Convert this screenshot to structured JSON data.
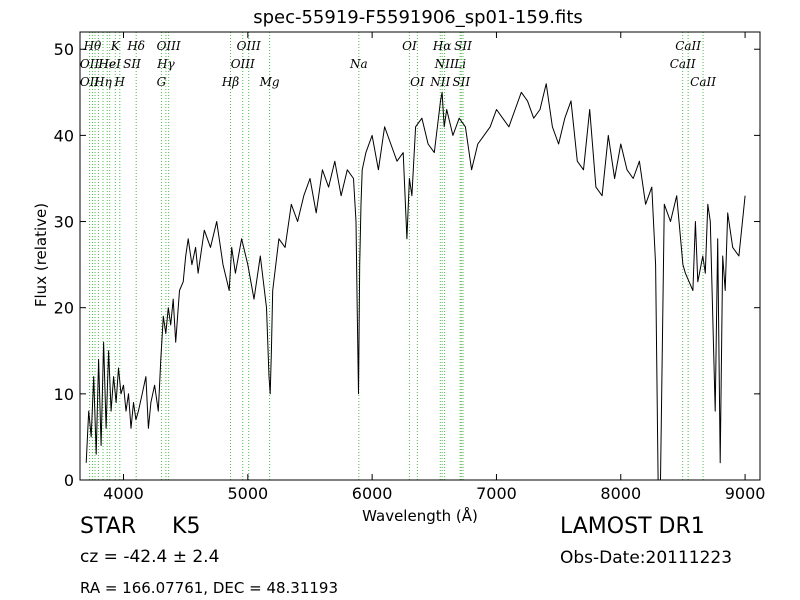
{
  "chart_data": {
    "type": "line",
    "title": "spec-55919-F5591906_sp01-159.fits",
    "xlabel": "Wavelength (Å)",
    "ylabel": "Flux (relative)",
    "xlim": [
      3650,
      9120
    ],
    "ylim": [
      0,
      52
    ],
    "xticks": [
      4000,
      5000,
      6000,
      7000,
      8000,
      9000
    ],
    "yticks": [
      0,
      10,
      20,
      30,
      40,
      50
    ],
    "grid": false,
    "series": [
      {
        "color": "#000000",
        "x": [
          3700,
          3720,
          3740,
          3760,
          3780,
          3800,
          3820,
          3840,
          3860,
          3880,
          3900,
          3920,
          3940,
          3960,
          3980,
          4000,
          4020,
          4040,
          4060,
          4080,
          4100,
          4120,
          4150,
          4180,
          4200,
          4220,
          4250,
          4280,
          4300,
          4320,
          4340,
          4360,
          4380,
          4400,
          4420,
          4450,
          4480,
          4500,
          4520,
          4550,
          4580,
          4600,
          4650,
          4700,
          4750,
          4800,
          4850,
          4870,
          4900,
          4950,
          5000,
          5050,
          5100,
          5150,
          5170,
          5180,
          5190,
          5200,
          5250,
          5300,
          5350,
          5400,
          5450,
          5500,
          5550,
          5600,
          5650,
          5700,
          5750,
          5800,
          5850,
          5870,
          5880,
          5890,
          5900,
          5910,
          5920,
          5950,
          6000,
          6050,
          6100,
          6150,
          6200,
          6250,
          6280,
          6300,
          6320,
          6350,
          6400,
          6450,
          6500,
          6550,
          6563,
          6580,
          6600,
          6650,
          6700,
          6750,
          6800,
          6850,
          6900,
          6950,
          7000,
          7050,
          7100,
          7150,
          7200,
          7250,
          7300,
          7350,
          7400,
          7450,
          7500,
          7550,
          7600,
          7650,
          7700,
          7750,
          7800,
          7850,
          7900,
          7950,
          8000,
          8050,
          8100,
          8150,
          8200,
          8250,
          8280,
          8300,
          8320,
          8350,
          8400,
          8450,
          8500,
          8520,
          8550,
          8580,
          8600,
          8620,
          8660,
          8680,
          8700,
          8720,
          8760,
          8780,
          8800,
          8820,
          8840,
          8860,
          8900,
          8950,
          9000
        ],
        "y": [
          2,
          8,
          5,
          12,
          3,
          14,
          4,
          16,
          6,
          15,
          8,
          12,
          9,
          13,
          10,
          11,
          8,
          10,
          6,
          9,
          7,
          8,
          10,
          12,
          6,
          9,
          11,
          8,
          14,
          19,
          17,
          20,
          18,
          21,
          16,
          22,
          23,
          26,
          28,
          25,
          27,
          24,
          29,
          27,
          30,
          25,
          22,
          27,
          24,
          28,
          25,
          21,
          26,
          20,
          12,
          10,
          15,
          22,
          28,
          27,
          32,
          30,
          33,
          35,
          31,
          36,
          34,
          37,
          33,
          36,
          35,
          30,
          20,
          10,
          25,
          32,
          36,
          38,
          40,
          36,
          41,
          39,
          37,
          38,
          28,
          35,
          33,
          41,
          42,
          39,
          38,
          44,
          45,
          41,
          43,
          40,
          42,
          41,
          36,
          39,
          40,
          41,
          43,
          42,
          41,
          43,
          45,
          44,
          42,
          43,
          46,
          41,
          39,
          42,
          44,
          37,
          36,
          43,
          34,
          33,
          40,
          35,
          39,
          36,
          35,
          37,
          32,
          34,
          25,
          0,
          0,
          32,
          30,
          33,
          25,
          24,
          23,
          22,
          30,
          23,
          26,
          24,
          32,
          30,
          8,
          28,
          2,
          26,
          22,
          31,
          27,
          26,
          33
        ]
      }
    ],
    "line_positions": [
      3727,
      3750,
      3771,
      3798,
      3835,
      3869,
      3889,
      3934,
      3970,
      4102,
      4305,
      4341,
      4363,
      4861,
      4959,
      5007,
      5175,
      5893,
      6300,
      6364,
      6548,
      6563,
      6583,
      6708,
      6717,
      6731,
      8498,
      8542,
      8662
    ],
    "line_labels": [
      {
        "text": "Hθ",
        "x": 3750,
        "row": 0
      },
      {
        "text": "K",
        "x": 3934,
        "row": 0
      },
      {
        "text": "Hδ",
        "x": 4102,
        "row": 0
      },
      {
        "text": "OIII",
        "x": 4363,
        "row": 0
      },
      {
        "text": "OIII",
        "x": 5007,
        "row": 0
      },
      {
        "text": "OI",
        "x": 6300,
        "row": 0
      },
      {
        "text": "Hα",
        "x": 6563,
        "row": 0
      },
      {
        "text": "SII",
        "x": 6731,
        "row": 0
      },
      {
        "text": "CaII",
        "x": 8542,
        "row": 0
      },
      {
        "text": "OII",
        "x": 3727,
        "row": 1
      },
      {
        "text": "He",
        "x": 3869,
        "row": 1
      },
      {
        "text": "HeI",
        "x": 3889,
        "row": 1
      },
      {
        "text": "SII",
        "x": 4068,
        "row": 1
      },
      {
        "text": "Hγ",
        "x": 4341,
        "row": 1
      },
      {
        "text": "OIII",
        "x": 4959,
        "row": 1
      },
      {
        "text": "Na",
        "x": 5893,
        "row": 1
      },
      {
        "text": "NII",
        "x": 6583,
        "row": 1
      },
      {
        "text": "Li",
        "x": 6708,
        "row": 1
      },
      {
        "text": "CaII",
        "x": 8498,
        "row": 1
      },
      {
        "text": "OII",
        "x": 3727,
        "row": 2
      },
      {
        "text": "Hη",
        "x": 3835,
        "row": 2
      },
      {
        "text": "H",
        "x": 3970,
        "row": 2
      },
      {
        "text": "G",
        "x": 4305,
        "row": 2
      },
      {
        "text": "Hβ",
        "x": 4861,
        "row": 2
      },
      {
        "text": "Mg",
        "x": 5175,
        "row": 2
      },
      {
        "text": "OI",
        "x": 6364,
        "row": 2
      },
      {
        "text": "NII",
        "x": 6548,
        "row": 2
      },
      {
        "text": "SII",
        "x": 6717,
        "row": 2
      },
      {
        "text": "CaII",
        "x": 8662,
        "row": 2
      }
    ]
  },
  "info": {
    "object_class": "STAR",
    "subclass": "K5",
    "cz": "cz = -42.4 ± 2.4",
    "coords": "RA = 166.07761, DEC = 48.31193",
    "survey": "LAMOST DR1",
    "obs_date": "Obs-Date:20111223"
  }
}
